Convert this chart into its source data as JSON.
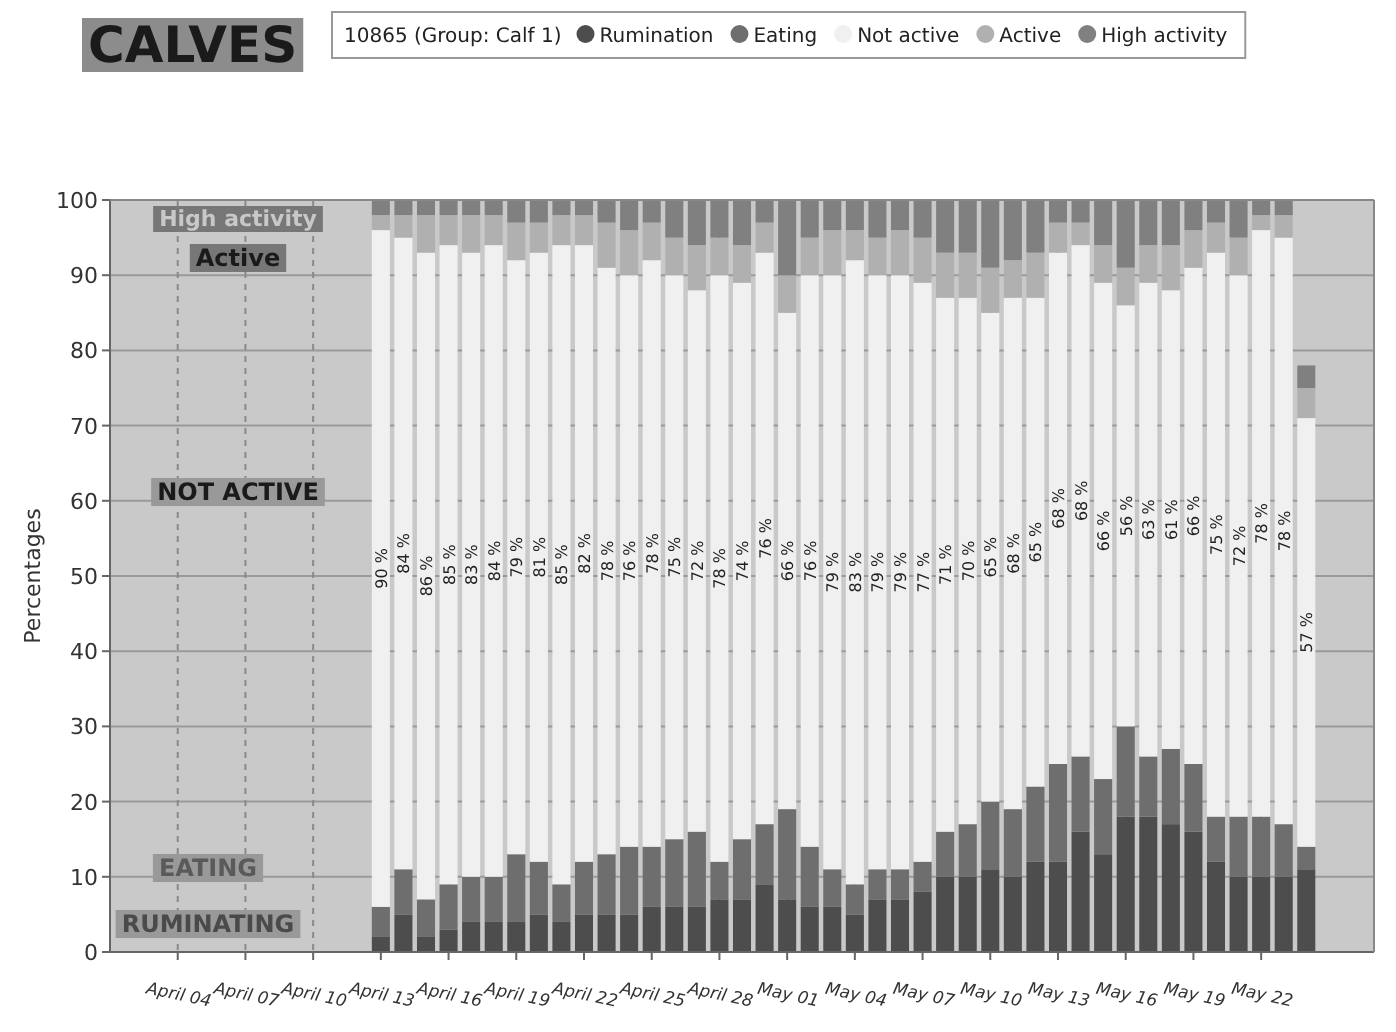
{
  "chart_data": {
    "type": "bar",
    "stacked": true,
    "title": "CALVES",
    "ylabel": "Percentages",
    "legend_title": "10865 (Group: Calf 1)",
    "legend": "top",
    "grid": true,
    "x": [
      "--04-13",
      "--04-14",
      "--04-15",
      "--04-16",
      "--04-17",
      "--04-18",
      "--04-19",
      "--04-20",
      "--04-21",
      "--04-22",
      "--04-23",
      "--04-24",
      "--04-25",
      "--04-26",
      "--04-27",
      "--04-28",
      "--04-29",
      "--04-30",
      "--05-01",
      "--05-02",
      "--05-03",
      "--05-04",
      "--05-05",
      "--05-06",
      "--05-07",
      "--05-08",
      "--05-09",
      "--05-10",
      "--05-11",
      "--05-12",
      "--05-13",
      "--05-14",
      "--05-15",
      "--05-16",
      "--05-17",
      "--05-18",
      "--05-19",
      "--05-20",
      "--05-21",
      "--05-22",
      "--05-23",
      "--05-24"
    ],
    "xlim": [
      "--04-01",
      "--05-27"
    ],
    "xticks": [
      {
        "value": "--04-04",
        "label": "April 04"
      },
      {
        "value": "--04-07",
        "label": "April 07"
      },
      {
        "value": "--04-10",
        "label": "April 10"
      },
      {
        "value": "--04-13",
        "label": "April 13"
      },
      {
        "value": "--04-16",
        "label": "April 16"
      },
      {
        "value": "--04-19",
        "label": "April 19"
      },
      {
        "value": "--04-22",
        "label": "April 22"
      },
      {
        "value": "--04-25",
        "label": "April 25"
      },
      {
        "value": "--04-28",
        "label": "April 28"
      },
      {
        "value": "--05-01",
        "label": "May 01"
      },
      {
        "value": "--05-04",
        "label": "May 04"
      },
      {
        "value": "--05-07",
        "label": "May 07"
      },
      {
        "value": "--05-10",
        "label": "May 10"
      },
      {
        "value": "--05-13",
        "label": "May 13"
      },
      {
        "value": "--05-16",
        "label": "May 16"
      },
      {
        "value": "--05-19",
        "label": "May 19"
      },
      {
        "value": "--05-22",
        "label": "May 22"
      }
    ],
    "ylim": [
      0,
      100
    ],
    "yticks": [
      0,
      10,
      20,
      30,
      40,
      50,
      60,
      70,
      80,
      90,
      100
    ],
    "series": [
      {
        "name": "Rumination",
        "color": "#4d4d4d",
        "values": [
          2,
          5,
          2,
          3,
          4,
          4,
          4,
          5,
          4,
          5,
          5,
          5,
          6,
          6,
          6,
          7,
          7,
          9,
          7,
          6,
          6,
          5,
          7,
          7,
          8,
          10,
          10,
          11,
          10,
          12,
          12,
          16,
          13,
          18,
          18,
          17,
          16,
          12,
          10,
          10,
          10,
          11
        ]
      },
      {
        "name": "Eating",
        "color": "#6e6e6e",
        "values": [
          4,
          6,
          5,
          6,
          6,
          6,
          9,
          7,
          5,
          7,
          8,
          9,
          8,
          9,
          10,
          5,
          8,
          8,
          12,
          8,
          5,
          4,
          4,
          4,
          4,
          6,
          7,
          9,
          9,
          10,
          13,
          10,
          10,
          12,
          8,
          10,
          9,
          6,
          8,
          8,
          7,
          3
        ]
      },
      {
        "name": "Not active",
        "color": "#f0f0f0",
        "values": [
          90,
          84,
          86,
          85,
          83,
          84,
          79,
          81,
          85,
          82,
          78,
          76,
          78,
          75,
          72,
          78,
          74,
          76,
          66,
          76,
          79,
          83,
          79,
          79,
          77,
          71,
          70,
          65,
          68,
          65,
          68,
          68,
          66,
          56,
          63,
          61,
          66,
          75,
          72,
          78,
          78,
          57
        ],
        "value_labels": [
          "90 %",
          "84 %",
          "86 %",
          "85 %",
          "83 %",
          "84 %",
          "79 %",
          "81 %",
          "85 %",
          "82 %",
          "78 %",
          "76 %",
          "78 %",
          "75 %",
          "72 %",
          "78 %",
          "74 %",
          "76 %",
          "66 %",
          "76 %",
          "79 %",
          "83 %",
          "79 %",
          "79 %",
          "77 %",
          "71 %",
          "70 %",
          "65 %",
          "68 %",
          "65 %",
          "68 %",
          "68 %",
          "66 %",
          "56 %",
          "63 %",
          "61 %",
          "66 %",
          "75 %",
          "72 %",
          "78 %",
          "78 %",
          "57 %"
        ]
      },
      {
        "name": "Active",
        "color": "#b0b0b0",
        "values": [
          2,
          3,
          5,
          4,
          5,
          4,
          5,
          4,
          4,
          4,
          6,
          6,
          5,
          5,
          6,
          5,
          5,
          4,
          5,
          5,
          6,
          4,
          5,
          6,
          6,
          6,
          6,
          6,
          5,
          6,
          4,
          3,
          5,
          5,
          5,
          6,
          5,
          4,
          5,
          2,
          3,
          4
        ]
      },
      {
        "name": "High activity",
        "color": "#808080",
        "values": [
          2,
          2,
          2,
          2,
          2,
          2,
          3,
          3,
          2,
          2,
          3,
          4,
          3,
          5,
          6,
          5,
          6,
          3,
          10,
          5,
          4,
          4,
          5,
          4,
          5,
          7,
          7,
          9,
          8,
          7,
          3,
          3,
          6,
          9,
          6,
          6,
          4,
          3,
          5,
          2,
          2,
          3
        ]
      }
    ],
    "annotations": [
      "High activity",
      "Active",
      "NOT ACTIVE",
      "EATING",
      "RUMINATING"
    ]
  }
}
